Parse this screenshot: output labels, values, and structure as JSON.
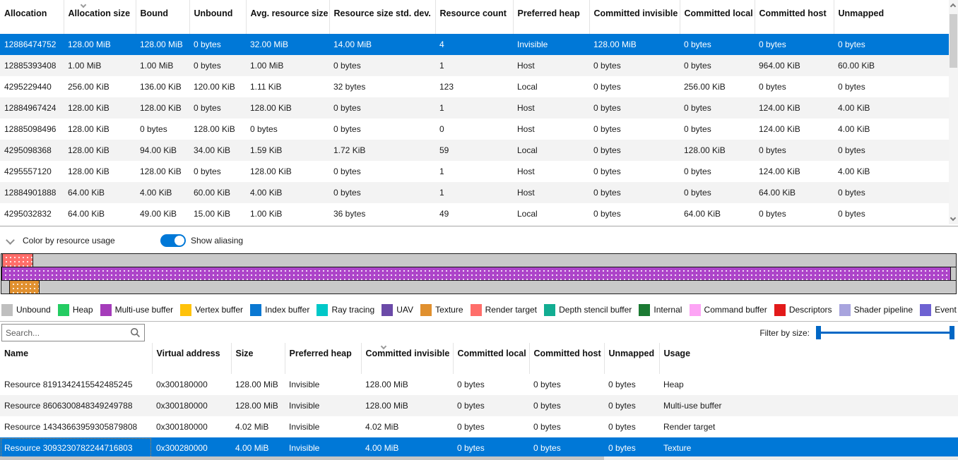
{
  "colors": {
    "selection": "#0078d7",
    "toggle_on": "#0078d7",
    "slider": "#0067c5",
    "bar_track": "#c9c9c9",
    "row_alternate": "#f3f3f3"
  },
  "allocation_table": {
    "columns": [
      "Allocation",
      "Allocation size",
      "Bound",
      "Unbound",
      "Avg. resource size",
      "Resource size std. dev.",
      "Resource count",
      "Preferred heap",
      "Committed invisible",
      "Committed local",
      "Committed host",
      "Unmapped"
    ],
    "sorted_column_index": 1,
    "sort_direction": "descending",
    "selected_row_index": 0,
    "rows": [
      [
        "12886474752",
        "128.00 MiB",
        "128.00 MiB",
        "0 bytes",
        "32.00 MiB",
        "14.00 MiB",
        "4",
        "Invisible",
        "128.00 MiB",
        "0 bytes",
        "0 bytes",
        "0 bytes"
      ],
      [
        "12885393408",
        "1.00 MiB",
        "1.00 MiB",
        "0 bytes",
        "1.00 MiB",
        "0 bytes",
        "1",
        "Host",
        "0 bytes",
        "0 bytes",
        "964.00 KiB",
        "60.00 KiB"
      ],
      [
        "4295229440",
        "256.00 KiB",
        "136.00 KiB",
        "120.00 KiB",
        "1.11 KiB",
        "32 bytes",
        "123",
        "Local",
        "0 bytes",
        "256.00 KiB",
        "0 bytes",
        "0 bytes"
      ],
      [
        "12884967424",
        "128.00 KiB",
        "128.00 KiB",
        "0 bytes",
        "128.00 KiB",
        "0 bytes",
        "1",
        "Host",
        "0 bytes",
        "0 bytes",
        "124.00 KiB",
        "4.00 KiB"
      ],
      [
        "12885098496",
        "128.00 KiB",
        "0 bytes",
        "128.00 KiB",
        "0 bytes",
        "0 bytes",
        "0",
        "Host",
        "0 bytes",
        "0 bytes",
        "124.00 KiB",
        "4.00 KiB"
      ],
      [
        "4295098368",
        "128.00 KiB",
        "94.00 KiB",
        "34.00 KiB",
        "1.59 KiB",
        "1.72 KiB",
        "59",
        "Local",
        "0 bytes",
        "128.00 KiB",
        "0 bytes",
        "0 bytes"
      ],
      [
        "4295557120",
        "128.00 KiB",
        "128.00 KiB",
        "0 bytes",
        "128.00 KiB",
        "0 bytes",
        "1",
        "Host",
        "0 bytes",
        "0 bytes",
        "124.00 KiB",
        "4.00 KiB"
      ],
      [
        "12884901888",
        "64.00 KiB",
        "4.00 KiB",
        "60.00 KiB",
        "4.00 KiB",
        "0 bytes",
        "1",
        "Host",
        "0 bytes",
        "0 bytes",
        "64.00 KiB",
        "0 bytes"
      ],
      [
        "4295032832",
        "64.00 KiB",
        "49.00 KiB",
        "15.00 KiB",
        "1.00 KiB",
        "36 bytes",
        "49",
        "Local",
        "0 bytes",
        "64.00 KiB",
        "0 bytes",
        "0 bytes"
      ]
    ]
  },
  "controls": {
    "collapse_label": "Color by resource usage",
    "aliasing_toggle_label": "Show aliasing",
    "aliasing_toggle_on": true
  },
  "memory_bars": {
    "bars": [
      {
        "name": "allocation-bar-1",
        "segments": [
          {
            "usage": "Render target",
            "color": "#ff6e6a",
            "left_pct": 0.1,
            "width_pct": 3.2
          }
        ]
      },
      {
        "name": "allocation-bar-2",
        "segments": [
          {
            "usage": "Multi-use buffer",
            "color": "#ad44c9",
            "left_pct": 0.0,
            "width_pct": 99.5
          }
        ]
      },
      {
        "name": "allocation-bar-3",
        "segments": [
          {
            "usage": "Texture",
            "color": "#e0902f",
            "left_pct": 0.85,
            "width_pct": 3.15
          }
        ]
      }
    ]
  },
  "legend": {
    "items": [
      {
        "label": "Unbound",
        "color": "#bfbfbf"
      },
      {
        "label": "Heap",
        "color": "#24cc62"
      },
      {
        "label": "Multi-use buffer",
        "color": "#a53cba"
      },
      {
        "label": "Vertex buffer",
        "color": "#ffc20a"
      },
      {
        "label": "Index buffer",
        "color": "#0a78d2"
      },
      {
        "label": "Ray tracing",
        "color": "#00c8c8"
      },
      {
        "label": "UAV",
        "color": "#6b4aa8"
      },
      {
        "label": "Texture",
        "color": "#e0902f"
      },
      {
        "label": "Render target",
        "color": "#ff6e6a"
      },
      {
        "label": "Depth stencil buffer",
        "color": "#12ad92"
      },
      {
        "label": "Internal",
        "color": "#1b7a33"
      },
      {
        "label": "Command buffer",
        "color": "#fda4f5"
      },
      {
        "label": "Descriptors",
        "color": "#e21a1a"
      },
      {
        "label": "Shader pipeline",
        "color": "#a8a4de"
      },
      {
        "label": "Event",
        "color": "#6e62d2"
      }
    ]
  },
  "filter_bar": {
    "search_placeholder": "Search...",
    "search_value": "",
    "filter_label": "Filter by size:"
  },
  "resource_table": {
    "columns": [
      "Name",
      "Virtual address",
      "Size",
      "Preferred heap",
      "Committed invisible",
      "Committed local",
      "Committed host",
      "Unmapped",
      "Usage"
    ],
    "sorted_column_index": 4,
    "sort_direction": "descending",
    "selected_row_index": 3,
    "rows": [
      [
        "Resource 8191342415542485245",
        "0x300180000",
        "128.00 MiB",
        "Invisible",
        "128.00 MiB",
        "0 bytes",
        "0 bytes",
        "0 bytes",
        "Heap"
      ],
      [
        "Resource 8606300848349249788",
        "0x300180000",
        "128.00 MiB",
        "Invisible",
        "128.00 MiB",
        "0 bytes",
        "0 bytes",
        "0 bytes",
        "Multi-use buffer"
      ],
      [
        "Resource 14343663959305879808",
        "0x300180000",
        "4.02 MiB",
        "Invisible",
        "4.02 MiB",
        "0 bytes",
        "0 bytes",
        "0 bytes",
        "Render target"
      ],
      [
        "Resource 3093230782244716803",
        "0x300280000",
        "4.00 MiB",
        "Invisible",
        "4.00 MiB",
        "0 bytes",
        "0 bytes",
        "0 bytes",
        "Texture"
      ]
    ]
  },
  "icons": {
    "sort_indicator": "chevron-down",
    "collapse": "chevron-down",
    "search": "magnifier",
    "scroll_up": "chevron-up",
    "scroll_down": "chevron-down"
  }
}
